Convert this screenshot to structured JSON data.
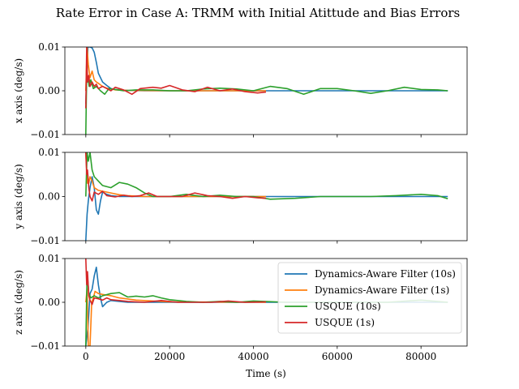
{
  "chart_data": {
    "type": "line",
    "title": "Rate Error in Case A: TRMM with Initial Atittude and Bias Errors",
    "xlabel": "Time (s)",
    "xlim": [
      -5000,
      91000
    ],
    "xticks": [
      0,
      20000,
      40000,
      60000,
      80000
    ],
    "xtick_labels": [
      "0",
      "20000",
      "40000",
      "60000",
      "80000"
    ],
    "legend": {
      "placement": "bottom-right of third panel",
      "entries": [
        {
          "name": "Dynamics-Aware Filter (10s)",
          "color": "#1f77b4"
        },
        {
          "name": "Dynamics-Aware Filter (1s)",
          "color": "#ff7f0e"
        },
        {
          "name": "USQUE (10s)",
          "color": "#2ca02c"
        },
        {
          "name": "USQUE (1s)",
          "color": "#d62728"
        }
      ]
    },
    "panels": [
      {
        "ylabel": "x axis (deg/s)",
        "ylim": [
          -0.01,
          0.01
        ],
        "yticks": [
          -0.01,
          0.0,
          0.01
        ],
        "ytick_labels": [
          "−0.01",
          "0.00",
          "0.01"
        ],
        "series": [
          {
            "name": "Dynamics-Aware Filter (10s)",
            "color": "#1f77b4",
            "x": [
              0,
              500,
              1000,
              1500,
              2000,
              2500,
              3000,
              4000,
              5000,
              6000,
              7000,
              8000,
              10000,
              14000,
              20000,
              30000,
              50000,
              70000,
              86400
            ],
            "y": [
              -0.003,
              0.01,
              0.01,
              0.0098,
              0.0088,
              0.0065,
              0.004,
              0.002,
              0.0012,
              0.0005,
              0.0003,
              0.0002,
              0.0001,
              0.0,
              0.0,
              0.0,
              0.0,
              0.0,
              0.0
            ]
          },
          {
            "name": "Dynamics-Aware Filter (1s)",
            "color": "#ff7f0e",
            "x": [
              0,
              300,
              600,
              1000,
              1500,
              2000,
              2500,
              3000,
              4000,
              5000,
              7000,
              10000,
              20000,
              43000
            ],
            "y": [
              0.0,
              0.01,
              0.006,
              0.003,
              0.0045,
              0.0025,
              0.002,
              0.0017,
              0.001,
              0.0006,
              0.0002,
              0.0001,
              0.0,
              0.0
            ]
          },
          {
            "name": "USQUE (10s)",
            "color": "#2ca02c",
            "x": [
              0,
              200,
              500,
              800,
              1200,
              1800,
              2500,
              3500,
              4500,
              5500,
              7000,
              9000,
              12000,
              16000,
              20000,
              24000,
              28000,
              32000,
              36000,
              40000,
              44000,
              48000,
              52000,
              56000,
              60000,
              64000,
              68000,
              72000,
              76000,
              80000,
              84000,
              86400
            ],
            "y": [
              -0.01,
              0.004,
              0.003,
              0.001,
              0.0025,
              0.0005,
              0.001,
              0.0,
              -0.0008,
              0.0005,
              0.0003,
              0.0,
              0.0002,
              0.0002,
              0.0,
              0.0,
              0.0004,
              0.0006,
              0.0004,
              0.0,
              0.001,
              0.0005,
              -0.0008,
              0.0005,
              0.0005,
              0.0,
              -0.0006,
              0.0,
              0.0008,
              0.0003,
              0.0002,
              0.0
            ]
          },
          {
            "name": "USQUE (1s)",
            "color": "#d62728",
            "x": [
              0,
              200,
              400,
              700,
              1000,
              1500,
              2000,
              2500,
              3000,
              4000,
              5000,
              6000,
              7000,
              9000,
              11000,
              13000,
              16000,
              18000,
              20000,
              23000,
              26000,
              29000,
              32000,
              35000,
              38000,
              41000,
              43000
            ],
            "y": [
              -0.004,
              0.01,
              0.002,
              0.0035,
              0.001,
              0.002,
              0.001,
              0.0015,
              0.0005,
              0.001,
              0.0005,
              0.0,
              0.0008,
              0.0002,
              -0.0008,
              0.0005,
              0.0008,
              0.0006,
              0.0012,
              0.0002,
              -0.0002,
              0.0008,
              0.0,
              0.0004,
              -0.0002,
              -0.0005,
              -0.0003
            ]
          }
        ]
      },
      {
        "ylabel": "y axis (deg/s)",
        "ylim": [
          -0.01,
          0.01
        ],
        "yticks": [
          -0.01,
          0.0,
          0.01
        ],
        "ytick_labels": [
          "−0.01",
          "0.00",
          "0.01"
        ],
        "series": [
          {
            "name": "Dynamics-Aware Filter (10s)",
            "color": "#1f77b4",
            "x": [
              0,
              300,
              600,
              1000,
              1500,
              2000,
              2500,
              3000,
              3500,
              4000,
              5000,
              6000,
              8000,
              10000,
              14000,
              20000,
              40000,
              86400
            ],
            "y": [
              -0.01,
              -0.004,
              -0.001,
              0.002,
              0.0045,
              0.002,
              -0.003,
              -0.004,
              -0.001,
              0.001,
              0.0005,
              0.0002,
              0.0,
              0.0,
              0.0,
              0.0,
              0.0,
              0.0
            ]
          },
          {
            "name": "Dynamics-Aware Filter (1s)",
            "color": "#ff7f0e",
            "x": [
              0,
              200,
              400,
              700,
              1000,
              1500,
              2000,
              3000,
              4000,
              6000,
              8000,
              10000,
              14000,
              20000,
              43000
            ],
            "y": [
              0.01,
              0.006,
              0.003,
              0.003,
              0.0045,
              0.0035,
              0.002,
              0.0014,
              0.0012,
              0.0008,
              0.0004,
              0.0002,
              0.0,
              0.0,
              0.0
            ]
          },
          {
            "name": "USQUE (10s)",
            "color": "#2ca02c",
            "x": [
              0,
              300,
              600,
              1000,
              1500,
              2000,
              3000,
              4000,
              6000,
              8000,
              10000,
              12000,
              14000,
              16000,
              20000,
              24000,
              28000,
              32000,
              36000,
              40000,
              44000,
              50000,
              56000,
              62000,
              68000,
              74000,
              80000,
              84000,
              86400
            ],
            "y": [
              0.0,
              0.01,
              0.008,
              0.01,
              0.006,
              0.0045,
              0.0035,
              0.0025,
              0.002,
              0.0032,
              0.0028,
              0.002,
              0.0008,
              0.0,
              0.0,
              0.0005,
              0.0,
              0.0003,
              0.0,
              0.0,
              -0.0006,
              -0.0004,
              0.0,
              0.0,
              0.0,
              0.0002,
              0.0005,
              0.0002,
              -0.0005
            ]
          },
          {
            "name": "USQUE (1s)",
            "color": "#d62728",
            "x": [
              0,
              200,
              400,
              700,
              1000,
              1500,
              2000,
              3000,
              4000,
              5000,
              7000,
              9000,
              11000,
              13000,
              15000,
              17000,
              20000,
              23000,
              26000,
              29000,
              32000,
              35000,
              38000,
              41000,
              43000
            ],
            "y": [
              0.01,
              0.005,
              0.006,
              0.002,
              0.0,
              -0.001,
              0.001,
              0.0005,
              0.0012,
              0.0002,
              -0.0001,
              0.0003,
              0.0,
              0.0002,
              0.0008,
              0.0,
              0.0,
              0.0,
              0.0008,
              0.0002,
              0.0,
              -0.0004,
              0.0,
              -0.0003,
              -0.0004
            ]
          }
        ]
      },
      {
        "ylabel": "z axis (deg/s)",
        "ylim": [
          -0.01,
          0.01
        ],
        "yticks": [
          -0.01,
          0.0,
          0.01
        ],
        "ytick_labels": [
          "−0.01",
          "0.00",
          "0.01"
        ],
        "series": [
          {
            "name": "Dynamics-Aware Filter (10s)",
            "color": "#1f77b4",
            "x": [
              0,
              500,
              1000,
              1500,
              2000,
              2500,
              3000,
              3500,
              4000,
              5000,
              6000,
              8000,
              10000,
              14000,
              20000,
              40000,
              86400
            ],
            "y": [
              -0.01,
              -0.006,
              0.002,
              0.003,
              0.006,
              0.008,
              0.004,
              0.001,
              -0.001,
              0.0,
              0.0004,
              0.0002,
              0.0,
              0.0,
              0.0,
              0.0,
              0.0
            ]
          },
          {
            "name": "Dynamics-Aware Filter (1s)",
            "color": "#ff7f0e",
            "x": [
              0,
              300,
              600,
              1000,
              1400,
              1800,
              2200,
              3000,
              4000,
              6000,
              8000,
              12000,
              20000,
              43000
            ],
            "y": [
              0.0,
              0.003,
              -0.01,
              -0.01,
              0.0,
              0.001,
              0.0025,
              0.002,
              0.0018,
              0.0015,
              0.001,
              0.0005,
              0.0001,
              0.0
            ]
          },
          {
            "name": "USQUE (10s)",
            "color": "#2ca02c",
            "x": [
              0,
              300,
              700,
              1200,
              2000,
              3000,
              4000,
              6000,
              8000,
              10000,
              12000,
              14000,
              16000,
              18000,
              20000,
              24000,
              28000,
              32000,
              36000,
              40000,
              48000,
              56000,
              64000,
              72000,
              80000,
              86400
            ],
            "y": [
              -0.01,
              0.007,
              0.002,
              0.001,
              0.0015,
              0.001,
              0.0015,
              0.002,
              0.0022,
              0.0012,
              0.0014,
              0.0012,
              0.0015,
              0.001,
              0.0006,
              0.0002,
              0.0,
              0.0002,
              0.0,
              0.0003,
              0.0,
              0.0,
              0.0,
              0.0,
              0.0005,
              0.0
            ]
          },
          {
            "name": "USQUE (1s)",
            "color": "#d62728",
            "x": [
              0,
              200,
              400,
              700,
              1000,
              1500,
              2000,
              3000,
              4000,
              5000,
              6000,
              8000,
              10000,
              14000,
              18000,
              22000,
              26000,
              30000,
              34000,
              38000,
              43000
            ],
            "y": [
              0.01,
              0.004,
              0.007,
              0.0015,
              0.0005,
              -0.0005,
              0.001,
              0.0008,
              0.0005,
              0.001,
              0.0006,
              0.0004,
              0.0002,
              0.0,
              0.0004,
              0.0,
              0.0,
              0.0,
              0.0003,
              0.0,
              0.0001
            ]
          }
        ]
      }
    ]
  }
}
